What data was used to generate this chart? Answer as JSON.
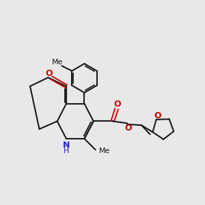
{
  "background_color": "#e8e8e8",
  "bond_color": "#1a1a1a",
  "bond_width": 1.5,
  "O_color": "#cc0000",
  "N_color": "#2222cc",
  "text_color": "#1a1a1a",
  "font_size": 8.0,
  "xlim": [
    0,
    10
  ],
  "ylim": [
    0,
    10
  ]
}
